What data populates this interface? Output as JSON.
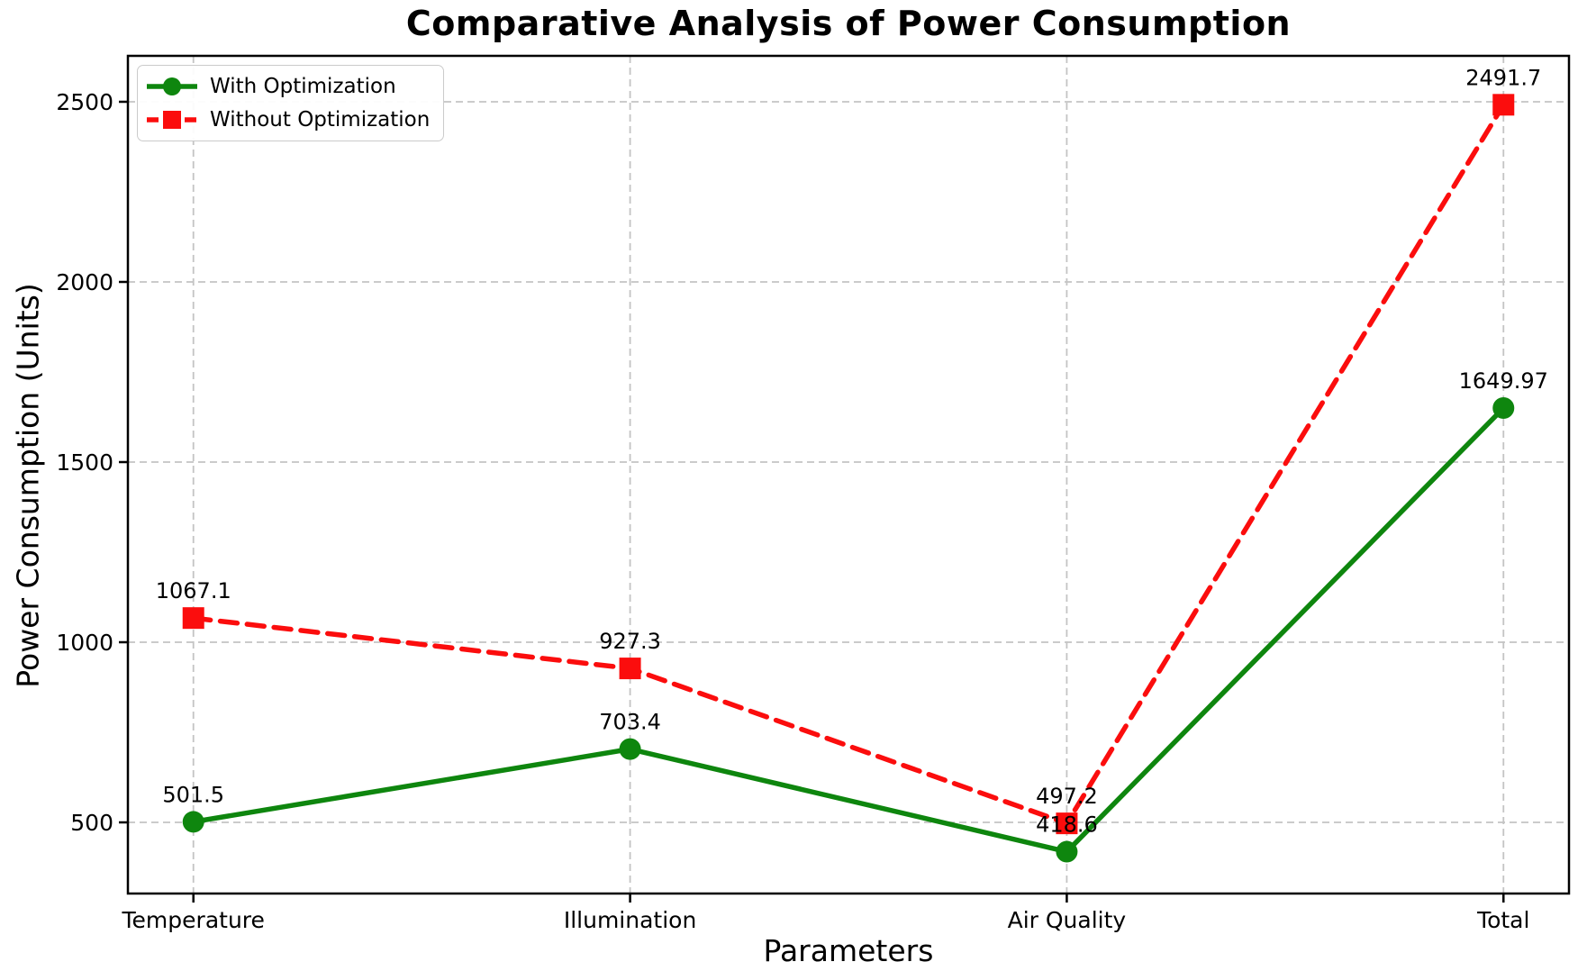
{
  "chart_data": {
    "type": "line",
    "title": "Comparative Analysis of Power Consumption",
    "xlabel": "Parameters",
    "ylabel": "Power Consumption (Units)",
    "categories": [
      "Temperature",
      "Illumination",
      "Air Quality",
      "Total"
    ],
    "series": [
      {
        "name": "With Optimization",
        "color": "#0e860e",
        "marker": "circle",
        "linestyle": "solid",
        "values": [
          501.5,
          703.4,
          418.6,
          1649.97
        ],
        "point_labels": [
          "501.5",
          "703.4",
          "418.6",
          "1649.97"
        ]
      },
      {
        "name": "Without Optimization",
        "color": "#fb0d0d",
        "marker": "square",
        "linestyle": "dashed",
        "values": [
          1067.1,
          927.3,
          497.2,
          2491.7
        ],
        "point_labels": [
          "1067.1",
          "927.3",
          "497.2",
          "2491.7"
        ]
      }
    ],
    "yticks": [
      500,
      1000,
      1500,
      2000,
      2500
    ],
    "ylim": [
      302.5,
      2627.5
    ],
    "xlim": [
      -0.15,
      3.15
    ],
    "grid": true,
    "grid_style": "dashed",
    "legend_position": "upper-left",
    "colors": {
      "grid": "#c4c4c4",
      "axis": "#000000",
      "text": "#000000",
      "background": "#ffffff"
    }
  }
}
